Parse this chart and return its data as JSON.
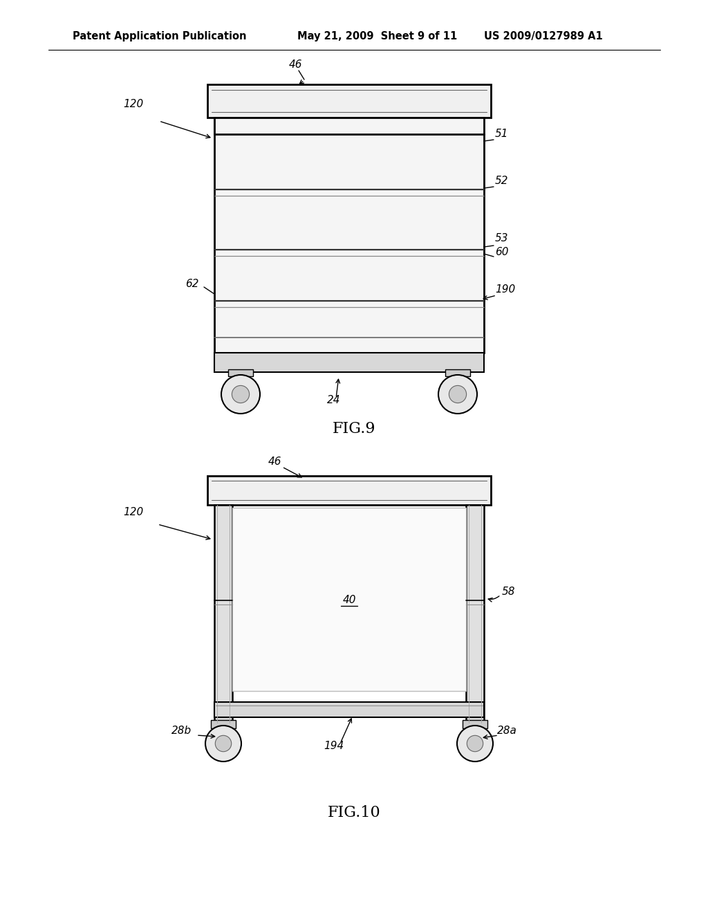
{
  "bg_color": "#ffffff",
  "header_text_left": "Patent Application Publication",
  "header_text_mid": "May 21, 2009  Sheet 9 of 11",
  "header_text_right": "US 2009/0127989 A1",
  "fig9_label": "FIG.9",
  "fig10_label": "FIG.10",
  "line_color": "#000000",
  "annotation_fontsize": 11,
  "figure_label_fontsize": 16,
  "header_fontsize": 10.5
}
